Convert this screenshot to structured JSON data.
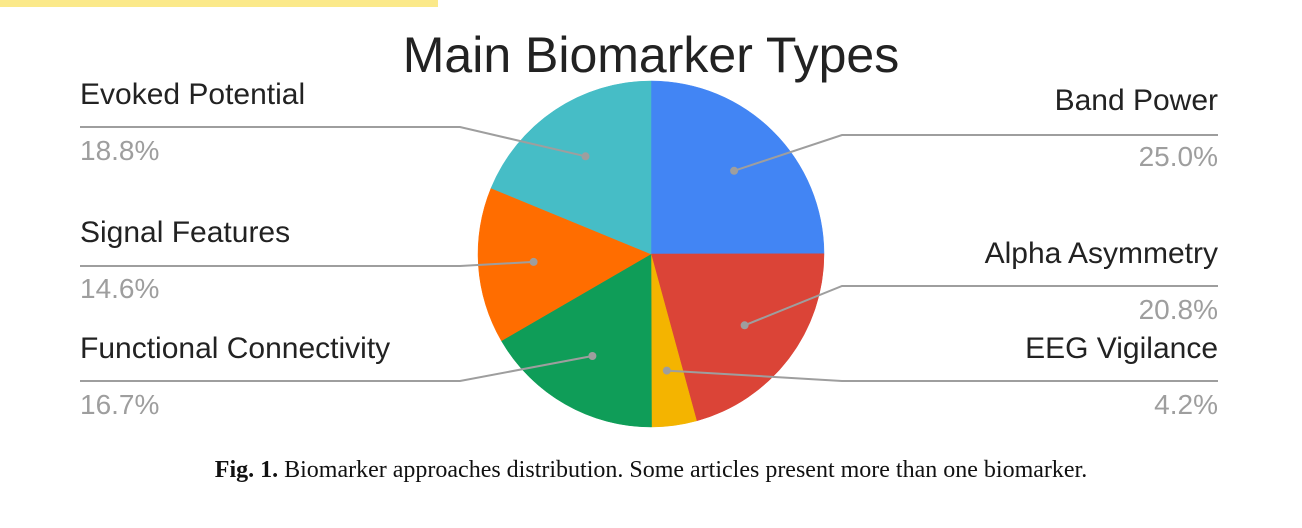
{
  "chart_data": {
    "type": "pie",
    "title": "Main Biomarker Types",
    "slices": [
      {
        "label": "Band Power",
        "value": 25.0,
        "display": "25.0%",
        "color": "#4285f4"
      },
      {
        "label": "Alpha Asymmetry",
        "value": 20.8,
        "display": "20.8%",
        "color": "#db4437"
      },
      {
        "label": "EEG Vigilance",
        "value": 4.2,
        "display": "4.2%",
        "color": "#f4b400"
      },
      {
        "label": "Functional Connectivity",
        "value": 16.7,
        "display": "16.7%",
        "color": "#0f9d58"
      },
      {
        "label": "Signal Features",
        "value": 14.6,
        "display": "14.6%",
        "color": "#ff6d00"
      },
      {
        "label": "Evoked Potential",
        "value": 18.8,
        "display": "18.8%",
        "color": "#46bdc6"
      }
    ],
    "start_angle": "12 o'clock",
    "direction": "clockwise",
    "legend": "labeled",
    "label_color": "#222222",
    "value_color": "#9e9e9e",
    "leader_color": "#9e9e9e"
  },
  "caption": {
    "prefix": "Fig. 1.",
    "text": "Biomarker approaches distribution. Some articles present more than one biomarker."
  }
}
